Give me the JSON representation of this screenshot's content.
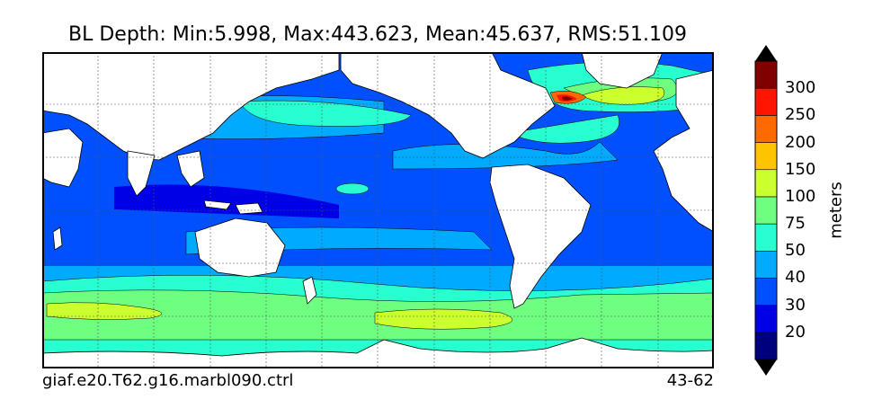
{
  "title": "BL Depth: Min:5.998, Max:443.623, Mean:45.637, RMS:51.109",
  "case_name": "giaf.e20.T62.g16.marbl090.ctrl",
  "years": "43-62",
  "colorbar": {
    "units": "meters",
    "labels": [
      "20",
      "30",
      "40",
      "50",
      "75",
      "100",
      "150",
      "200",
      "250",
      "300"
    ],
    "colors": [
      "#00007f",
      "#0000e6",
      "#0050ff",
      "#00aaff",
      "#28ffd0",
      "#6fff80",
      "#cbff2d",
      "#ffc400",
      "#ff6a00",
      "#ff1500",
      "#800000"
    ],
    "extend": "both"
  },
  "map": {
    "ocean_color": "#0050ff",
    "land_color": "#ffffff",
    "grid": true
  }
}
